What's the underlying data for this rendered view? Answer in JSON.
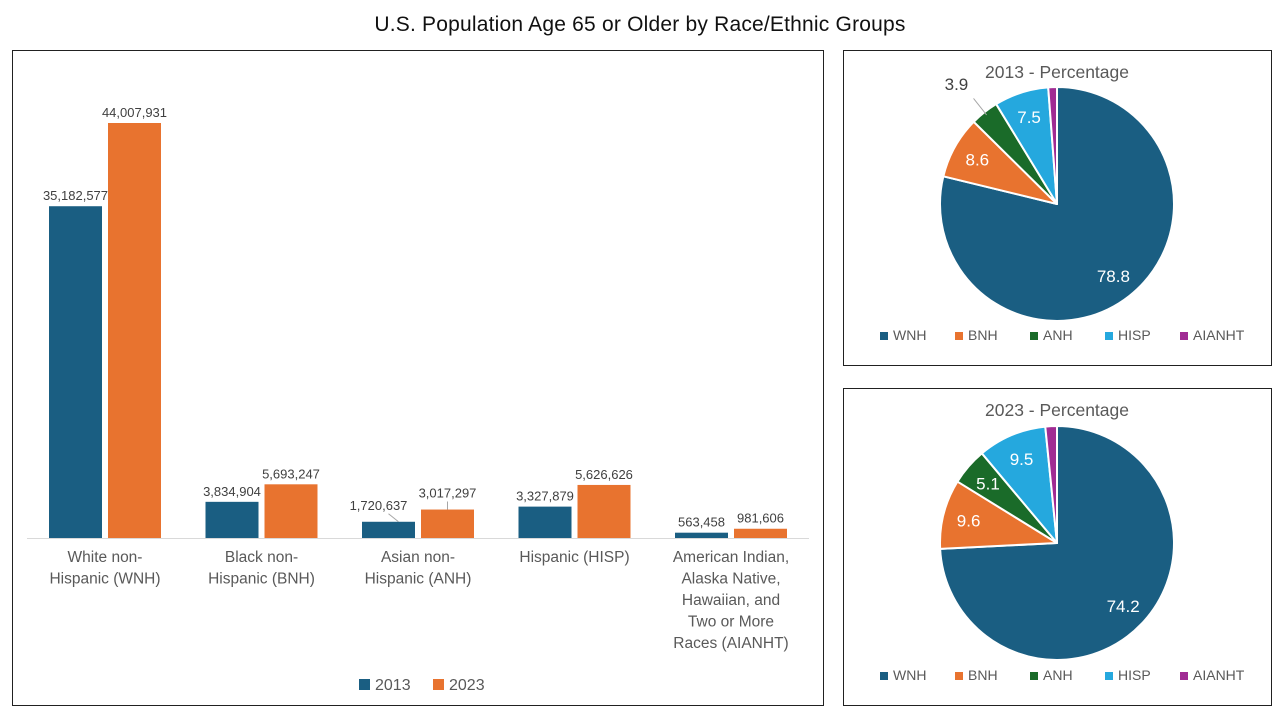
{
  "page": {
    "title": "U.S. Population Age 65 or Older by Race/Ethnic Groups"
  },
  "colors": {
    "series_2013": "#1A5E82",
    "series_2023": "#E8732F",
    "wnh": "#1A5E82",
    "bnh": "#E8732F",
    "anh": "#1A6B29",
    "hisp": "#25A8DE",
    "aianht": "#A02B93",
    "axis_line": "#d9d9d9",
    "label_text": "#595959",
    "value_text": "#404040"
  },
  "chart_data": [
    {
      "type": "bar",
      "title": "",
      "categories": [
        "White non-Hispanic (WNH)",
        "Black non-Hispanic (BNH)",
        "Asian non-Hispanic (ANH)",
        "Hispanic (HISP)",
        "American Indian, Alaska Native, Hawaiian, and Two or More Races (AIANHT)"
      ],
      "category_lines": [
        [
          "White non-",
          "Hispanic (WNH)"
        ],
        [
          "Black non-",
          "Hispanic (BNH)"
        ],
        [
          "Asian non-",
          "Hispanic (ANH)"
        ],
        [
          "Hispanic (HISP)"
        ],
        [
          "American Indian,",
          "Alaska Native,",
          "Hawaiian, and",
          "Two or More",
          "Races (AIANHT)"
        ]
      ],
      "short_names": [
        "WNH",
        "BNH",
        "ANH",
        "HISP",
        "AIANHT"
      ],
      "series": [
        {
          "name": "2013",
          "color": "#1A5E82",
          "values": [
            35182577,
            3834904,
            1720637,
            3327879,
            563458
          ],
          "value_labels": [
            "35,182,577",
            "3,834,904",
            "1,720,637",
            "3,327,879",
            "563,458"
          ]
        },
        {
          "name": "2023",
          "color": "#E8732F",
          "values": [
            44007931,
            5693247,
            3017297,
            5626626,
            981606
          ],
          "value_labels": [
            "44,007,931",
            "5,693,247",
            "3,017,297",
            "5,626,626",
            "981,606"
          ]
        }
      ],
      "ylim": [
        0,
        44007931
      ],
      "gridlines": false,
      "y_axis_shown": false,
      "legend_position": "bottom",
      "callout_category_index": 2
    },
    {
      "type": "pie",
      "title": "2013 - Percentage",
      "labels": [
        "WNH",
        "BNH",
        "ANH",
        "HISP",
        "AIANHT"
      ],
      "values": [
        78.8,
        8.6,
        3.9,
        7.5,
        1.2
      ],
      "data_labels": [
        "78.8",
        "8.6",
        "3.9",
        "7.5",
        ""
      ],
      "colors": [
        "#1A5E82",
        "#E8732F",
        "#1A6B29",
        "#25A8DE",
        "#A02B93"
      ],
      "legend_position": "bottom",
      "callout_index": 2,
      "start_angle": "top",
      "direction": "clockwise"
    },
    {
      "type": "pie",
      "title": "2023 - Percentage",
      "labels": [
        "WNH",
        "BNH",
        "ANH",
        "HISP",
        "AIANHT"
      ],
      "values": [
        74.2,
        9.6,
        5.1,
        9.5,
        1.6
      ],
      "data_labels": [
        "74.2",
        "9.6",
        "5.1",
        "9.5",
        ""
      ],
      "colors": [
        "#1A5E82",
        "#E8732F",
        "#1A6B29",
        "#25A8DE",
        "#A02B93"
      ],
      "legend_position": "bottom",
      "callout_index": -1,
      "start_angle": "top",
      "direction": "clockwise"
    }
  ]
}
